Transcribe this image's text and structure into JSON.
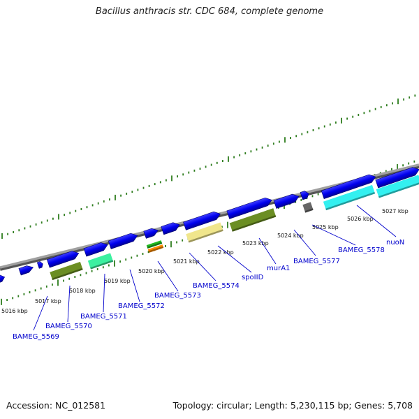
{
  "title": "Bacillus anthracis str. CDC 684, complete genome",
  "footer": {
    "accession": "Accession: NC_012581",
    "summary": "Topology: circular; Length: 5,230,115 bp; Genes: 5,708"
  },
  "ticks": [
    "5016 kbp",
    "5017 kbp",
    "5018 kbp",
    "5019 kbp",
    "5020 kbp",
    "5021 kbp",
    "5022 kbp",
    "5023 kbp",
    "5024 kbp",
    "5025 kbp",
    "5026 kbp",
    "5027 kbp"
  ],
  "genes": [
    "BAMEG_5569",
    "BAMEG_5570",
    "BAMEG_5571",
    "BAMEG_5572",
    "BAMEG_5573",
    "BAMEG_5574",
    "spoIID",
    "murA1",
    "BAMEG_5577",
    "BAMEG_5578",
    "nuoN"
  ],
  "colors": {
    "cds": "#0000ee",
    "cds_dark": "#00008a",
    "backbone": "#7a7a7a",
    "tick": "#2e7d1e",
    "olive": "#6b8e23",
    "light_green": "#3cf0a0",
    "cyan": "#33f0f0",
    "khaki": "#f0e68c",
    "green": "#22bb22",
    "orange": "#ff8c00",
    "gray": "#666666",
    "label": "#0000cc"
  }
}
